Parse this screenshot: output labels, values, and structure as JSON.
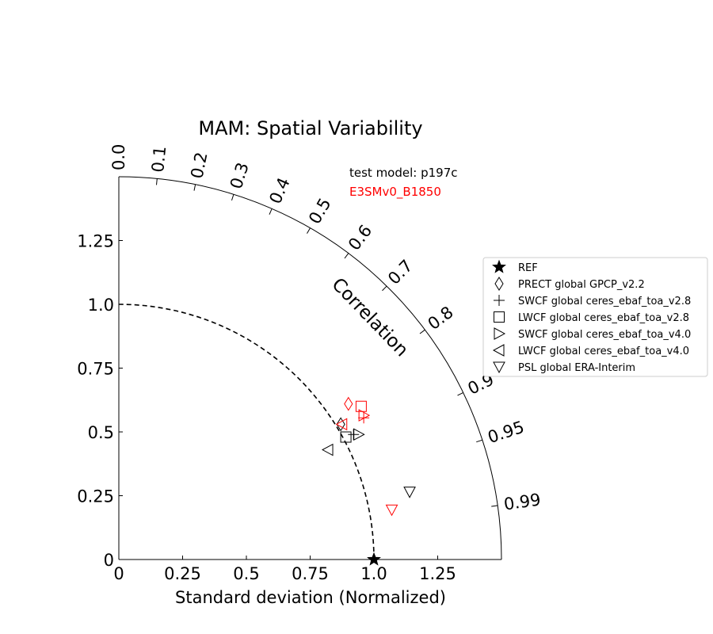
{
  "chart_data": {
    "type": "scatter",
    "subtype": "taylor-diagram",
    "title": "MAM: Spatial Variability",
    "xlabel": "Standard deviation (Normalized)",
    "corr_label": "Correlation",
    "test_model_label": "test model: p197c",
    "ref_model_label": "E3SMv0_B1850",
    "std_range": [
      0,
      1.5
    ],
    "std_ticks": [
      0,
      0.25,
      0.5,
      0.75,
      1.0,
      1.25
    ],
    "std_tick_labels": [
      "0",
      "0.25",
      "0.5",
      "0.75",
      "1.0",
      "1.25"
    ],
    "corr_ticks": [
      0.0,
      0.1,
      0.2,
      0.3,
      0.4,
      0.5,
      0.6,
      0.7,
      0.8,
      0.9,
      0.95,
      0.99
    ],
    "corr_tick_labels": [
      "0.0",
      "0.1",
      "0.2",
      "0.3",
      "0.4",
      "0.5",
      "0.6",
      "0.7",
      "0.8",
      "0.9",
      "0.95",
      "0.99"
    ],
    "ref_std": 1.0,
    "legend_position": "right",
    "legend": [
      {
        "label": "REF",
        "marker": "star"
      },
      {
        "label": "PRECT global GPCP_v2.2",
        "marker": "diamond"
      },
      {
        "label": "SWCF global ceres_ebaf_toa_v2.8",
        "marker": "plus"
      },
      {
        "label": "LWCF global ceres_ebaf_toa_v2.8",
        "marker": "square"
      },
      {
        "label": "SWCF global ceres_ebaf_toa_v4.0",
        "marker": "triangle-right"
      },
      {
        "label": "LWCF global ceres_ebaf_toa_v4.0",
        "marker": "triangle-left"
      },
      {
        "label": "PSL global ERA-Interim",
        "marker": "triangle-down"
      }
    ],
    "series": [
      {
        "name": "test model: p197c",
        "color": "#000000",
        "points": [
          {
            "marker": "diamond",
            "x": 0.87,
            "y": 0.53
          },
          {
            "marker": "plus",
            "x": 0.92,
            "y": 0.49
          },
          {
            "marker": "square",
            "x": 0.89,
            "y": 0.48
          },
          {
            "marker": "triangle-right",
            "x": 0.94,
            "y": 0.49
          },
          {
            "marker": "triangle-left",
            "x": 0.82,
            "y": 0.43
          },
          {
            "marker": "triangle-down",
            "x": 1.14,
            "y": 0.265
          }
        ]
      },
      {
        "name": "E3SMv0_B1850",
        "color": "#ff0000",
        "points": [
          {
            "marker": "diamond",
            "x": 0.9,
            "y": 0.61
          },
          {
            "marker": "plus",
            "x": 0.96,
            "y": 0.555
          },
          {
            "marker": "square",
            "x": 0.95,
            "y": 0.6
          },
          {
            "marker": "triangle-right",
            "x": 0.96,
            "y": 0.565
          },
          {
            "marker": "triangle-left",
            "x": 0.875,
            "y": 0.53
          },
          {
            "marker": "triangle-down",
            "x": 1.07,
            "y": 0.195
          }
        ]
      }
    ],
    "ref_point": {
      "marker": "star",
      "x": 1.0,
      "y": 0.0,
      "color": "#000000"
    }
  }
}
